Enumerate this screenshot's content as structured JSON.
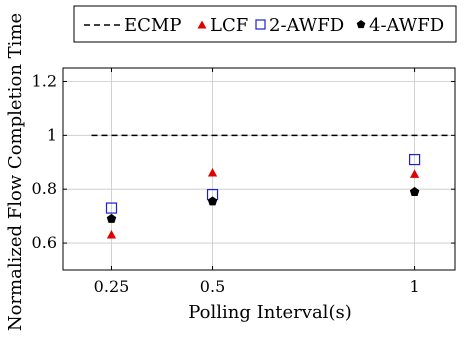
{
  "chart_data": {
    "type": "scatter",
    "title": "",
    "xlabel": "Polling Interval(s)",
    "ylabel": "Normalized Flow Completion Time",
    "x": [
      0.25,
      0.5,
      1
    ],
    "x_tick_labels": [
      "0.25",
      "0.5",
      "1"
    ],
    "y_ticks": [
      0.6,
      0.8,
      1,
      1.2
    ],
    "y_tick_labels": [
      "0.6",
      "0.8",
      "1",
      "1.2"
    ],
    "xlim": [
      0.13,
      1.1
    ],
    "ylim": [
      0.5,
      1.25
    ],
    "grid": true,
    "legend_position": "top",
    "series": [
      {
        "name": "ECMP",
        "kind": "dashed-line",
        "color": "#000000",
        "values": [
          1,
          1,
          1
        ]
      },
      {
        "name": "LCF",
        "marker": "triangle",
        "color": "#e00000",
        "values": [
          0.63,
          0.86,
          0.855
        ]
      },
      {
        "name": "2-AWFD",
        "marker": "square-open",
        "color": "#1f1fd0",
        "values": [
          0.73,
          0.78,
          0.91
        ]
      },
      {
        "name": "4-AWFD",
        "marker": "pentagon",
        "color": "#000000",
        "values": [
          0.69,
          0.755,
          0.79
        ]
      }
    ]
  }
}
